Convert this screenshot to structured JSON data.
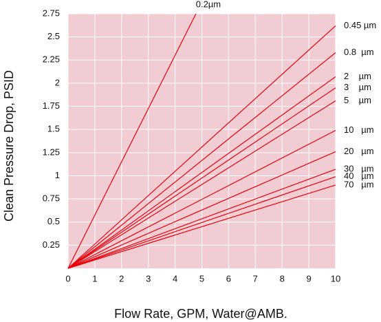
{
  "chart_data": {
    "type": "line",
    "x_label": "Flow Rate, GPM, Water@AMB.",
    "y_label": "Clean Pressure Drop, PSID",
    "xlim": [
      0,
      10
    ],
    "ylim": [
      0,
      2.75
    ],
    "xticks": [
      0,
      1,
      2,
      3,
      4,
      5,
      6,
      7,
      8,
      9,
      10
    ],
    "yticks": [
      0.25,
      0.5,
      0.75,
      1.0,
      1.25,
      1.5,
      1.75,
      2.0,
      2.25,
      2.5,
      2.75
    ],
    "grid": true,
    "series": [
      {
        "name": "0.2µm",
        "color": "#e8000b",
        "x": [
          0,
          4.78
        ],
        "values": [
          0,
          2.75
        ]
      },
      {
        "name": "0.45 µm",
        "color": "#e8000b",
        "x": [
          0,
          10
        ],
        "values": [
          0,
          2.62
        ]
      },
      {
        "name": "0.8  µm",
        "color": "#e8000b",
        "x": [
          0,
          10
        ],
        "values": [
          0,
          2.33
        ]
      },
      {
        "name": "2    µm",
        "color": "#e8000b",
        "x": [
          0,
          10
        ],
        "values": [
          0,
          2.07
        ]
      },
      {
        "name": "3    µm",
        "color": "#e8000b",
        "x": [
          0,
          10
        ],
        "values": [
          0,
          1.95
        ]
      },
      {
        "name": "5    µm",
        "color": "#e8000b",
        "x": [
          0,
          10
        ],
        "values": [
          0,
          1.81
        ]
      },
      {
        "name": "10   µm",
        "color": "#e8000b",
        "x": [
          0,
          10
        ],
        "values": [
          0,
          1.49
        ]
      },
      {
        "name": "20   µm",
        "color": "#e8000b",
        "x": [
          0,
          10
        ],
        "values": [
          0,
          1.26
        ]
      },
      {
        "name": "30   µm",
        "color": "#e8000b",
        "x": [
          0,
          10
        ],
        "values": [
          0,
          1.07
        ]
      },
      {
        "name": "40   µm",
        "color": "#e8000b",
        "x": [
          0,
          10
        ],
        "values": [
          0,
          0.99
        ]
      },
      {
        "name": "70   µm",
        "color": "#e8000b",
        "x": [
          0,
          10
        ],
        "values": [
          0,
          0.9
        ]
      }
    ]
  }
}
